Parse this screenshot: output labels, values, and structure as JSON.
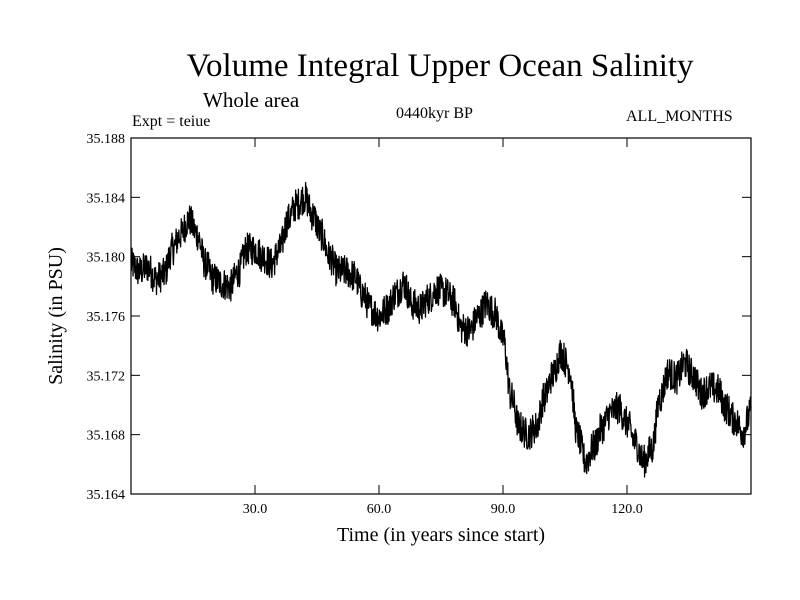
{
  "chart_data": {
    "type": "line",
    "title": "Volume Integral Upper Ocean Salinity",
    "subtitle": "Whole area",
    "experiment": "Expt = teiue",
    "period": "0440kyr BP",
    "months": "ALL_MONTHS",
    "xlabel": "Time (in years since start)",
    "ylabel": "Salinity (in PSU)",
    "xlim": [
      0,
      150
    ],
    "ylim": [
      35.164,
      35.188
    ],
    "xticks": [
      30,
      60,
      90,
      120
    ],
    "xtick_labels": [
      "30.0",
      "60.0",
      "90.0",
      "120.0"
    ],
    "yticks": [
      35.164,
      35.168,
      35.172,
      35.176,
      35.18,
      35.184,
      35.188
    ],
    "ytick_labels": [
      "35.164",
      "35.168",
      "35.172",
      "35.176",
      "35.180",
      "35.184",
      "35.188"
    ],
    "series": [
      {
        "name": "salinity",
        "color": "#000000",
        "noise": 0.0011,
        "x": [
          0,
          2,
          4,
          6,
          8,
          10,
          12,
          14,
          16,
          18,
          20,
          22,
          24,
          26,
          28,
          30,
          32,
          34,
          36,
          38,
          40,
          42,
          44,
          46,
          48,
          50,
          52,
          54,
          56,
          58,
          60,
          62,
          64,
          66,
          68,
          70,
          72,
          74,
          76,
          78,
          80,
          82,
          84,
          86,
          88,
          90,
          92,
          94,
          96,
          98,
          100,
          102,
          104,
          106,
          108,
          110,
          112,
          114,
          116,
          118,
          120,
          122,
          124,
          126,
          128,
          130,
          132,
          134,
          136,
          138,
          140,
          142,
          144,
          146,
          148,
          150
        ],
        "values": [
          35.1795,
          35.179,
          35.1793,
          35.1785,
          35.1788,
          35.1805,
          35.1815,
          35.1825,
          35.1815,
          35.1795,
          35.1785,
          35.1782,
          35.178,
          35.179,
          35.1805,
          35.1805,
          35.18,
          35.1795,
          35.1805,
          35.1825,
          35.1835,
          35.184,
          35.1828,
          35.1815,
          35.18,
          35.179,
          35.179,
          35.1787,
          35.1775,
          35.1765,
          35.176,
          35.1765,
          35.1775,
          35.1782,
          35.1768,
          35.1765,
          35.1772,
          35.1778,
          35.1776,
          35.177,
          35.1752,
          35.175,
          35.176,
          35.1768,
          35.1762,
          35.1745,
          35.1705,
          35.1685,
          35.168,
          35.1685,
          35.1705,
          35.172,
          35.1735,
          35.1725,
          35.168,
          35.1662,
          35.1672,
          35.1685,
          35.1695,
          35.1698,
          35.1688,
          35.1675,
          35.1662,
          35.167,
          35.1705,
          35.1722,
          35.1718,
          35.1728,
          35.172,
          35.1708,
          35.1712,
          35.171,
          35.1698,
          35.169,
          35.1682,
          35.1695
        ]
      }
    ]
  }
}
